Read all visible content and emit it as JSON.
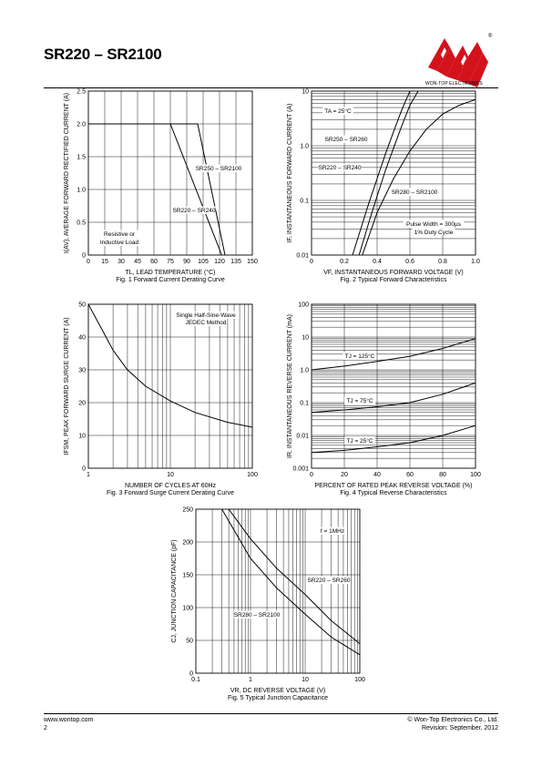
{
  "header": {
    "title": "SR220 – SR2100",
    "brand": "WON-TOP ELECTRONICS",
    "trademark": "®"
  },
  "footer": {
    "website": "www.wontop.com",
    "page_number": "2",
    "copyright": "© Won-Top Electronics Co., Ltd.",
    "revision": "Revision: September, 2012"
  },
  "chart_data": [
    {
      "id": "fig1",
      "type": "line",
      "caption": "Fig. 1 Forward Current Derating Curve",
      "xlabel": "TL, LEAD TEMPERATURE (°C)",
      "ylabel": "I(AV), AVERAGE FORWARD RECTIFIED CURRENT (A)",
      "xlim": [
        0,
        150
      ],
      "ylim": [
        0,
        2.5
      ],
      "xticks": [
        "0",
        "15",
        "30",
        "45",
        "60",
        "75",
        "90",
        "105",
        "120",
        "135",
        "150"
      ],
      "yticks": [
        "0",
        "0.5",
        "1.0",
        "1.5",
        "2.0",
        "2.5"
      ],
      "series": [
        {
          "name": "SR250 – SR2100",
          "x": [
            0,
            100,
            125
          ],
          "y": [
            2.0,
            2.0,
            0
          ]
        },
        {
          "name": "SR220 – SR240",
          "x": [
            0,
            75,
            122
          ],
          "y": [
            2.0,
            2.0,
            0
          ]
        }
      ],
      "annotations": [
        "Resistive or",
        "Inductive Load"
      ]
    },
    {
      "id": "fig2",
      "type": "line",
      "caption": "Fig. 2 Typical Forward Characteristics",
      "xlabel": "VF, INSTANTANEOUS FORWARD VOLTAGE (V)",
      "ylabel": "IF, INSTANTANEOUS FORWARD CURRENT (A)",
      "xlim": [
        0,
        1.0
      ],
      "ylim": [
        0.01,
        10
      ],
      "yscale": "log",
      "xticks": [
        "0",
        "0.2",
        "0.4",
        "0.6",
        "0.8",
        "1.0"
      ],
      "yticks": [
        "0.01",
        "0.1",
        "1.0",
        "10"
      ],
      "series": [
        {
          "name": "SR220 – SR240",
          "x": [
            0.25,
            0.3,
            0.35,
            0.4,
            0.45,
            0.5,
            0.55,
            0.6
          ],
          "y": [
            0.01,
            0.03,
            0.09,
            0.25,
            0.7,
            1.8,
            4.5,
            10
          ]
        },
        {
          "name": "SR250 – SR260",
          "x": [
            0.29,
            0.35,
            0.4,
            0.45,
            0.5,
            0.55,
            0.6,
            0.65
          ],
          "y": [
            0.01,
            0.04,
            0.12,
            0.35,
            0.9,
            2.3,
            5.5,
            10
          ]
        },
        {
          "name": "SR280 – SR2100",
          "x": [
            0.31,
            0.4,
            0.5,
            0.6,
            0.7,
            0.8,
            0.9,
            1.0
          ],
          "y": [
            0.01,
            0.06,
            0.25,
            0.8,
            2.0,
            3.8,
            5.5,
            7.0
          ]
        }
      ],
      "annotations": [
        "TA = 25°C",
        "Pulse Width = 300µs",
        "1% Duty Cycle"
      ]
    },
    {
      "id": "fig3",
      "type": "line",
      "caption": "Fig. 3 Forward Surge Current Derating Curve",
      "xlabel": "NUMBER OF CYCLES AT 60Hz",
      "ylabel": "IFSM, PEAK FORWARD SURGE CURRENT (A)",
      "xlim": [
        1,
        100
      ],
      "xscale": "log",
      "ylim": [
        0,
        50
      ],
      "xticks": [
        "1",
        "10",
        "100"
      ],
      "yticks": [
        "0",
        "10",
        "20",
        "30",
        "40",
        "50"
      ],
      "series": [
        {
          "name": "",
          "x": [
            1,
            2,
            3,
            5,
            10,
            20,
            50,
            100
          ],
          "y": [
            50,
            36,
            30,
            25,
            20.5,
            17,
            14,
            12.5
          ]
        }
      ],
      "annotations": [
        "Single Half-Sine-Wave",
        "JEDEC Method"
      ]
    },
    {
      "id": "fig4",
      "type": "line",
      "caption": "Fig. 4 Typical Reverse Characteristics",
      "xlabel": "PERCENT OF RATED PEAK REVERSE VOLTAGE (%)",
      "ylabel": "IR, INSTANTANEOUS REVERSE CURRENT (mA)",
      "xlim": [
        0,
        100
      ],
      "ylim": [
        0.001,
        100
      ],
      "yscale": "log",
      "xticks": [
        "0",
        "20",
        "40",
        "60",
        "80",
        "100"
      ],
      "yticks": [
        "0.001",
        "0.01",
        "0.1",
        "1.0",
        "10",
        "100"
      ],
      "series": [
        {
          "name": "TJ = 125°C",
          "x": [
            0,
            20,
            40,
            60,
            80,
            100
          ],
          "y": [
            1.0,
            1.3,
            1.8,
            2.6,
            4.5,
            9
          ]
        },
        {
          "name": "TJ = 75°C",
          "x": [
            0,
            20,
            40,
            60,
            80,
            100
          ],
          "y": [
            0.05,
            0.06,
            0.075,
            0.1,
            0.18,
            0.4
          ]
        },
        {
          "name": "TJ = 25°C",
          "x": [
            0,
            20,
            40,
            60,
            80,
            100
          ],
          "y": [
            0.003,
            0.0035,
            0.0045,
            0.006,
            0.01,
            0.02
          ]
        }
      ]
    },
    {
      "id": "fig5",
      "type": "line",
      "caption": "Fig. 5 Typical Junction Capacitance",
      "xlabel": "VR, DC REVERSE VOLTAGE (V)",
      "ylabel": "CJ, JUNCTION CAPACITANCE (pF)",
      "xlim": [
        0.1,
        100
      ],
      "xscale": "log",
      "ylim": [
        0,
        250
      ],
      "xticks": [
        "0.1",
        "1",
        "10",
        "100"
      ],
      "yticks": [
        "0",
        "50",
        "100",
        "150",
        "200",
        "250"
      ],
      "series": [
        {
          "name": "SR220 – SR260",
          "x": [
            0.4,
            1,
            3,
            10,
            30,
            100
          ],
          "y": [
            250,
            205,
            160,
            120,
            80,
            45
          ]
        },
        {
          "name": "SR280 – SR2100",
          "x": [
            0.3,
            1,
            3,
            10,
            30,
            100
          ],
          "y": [
            250,
            175,
            130,
            90,
            55,
            28
          ]
        }
      ],
      "annotations": [
        "f = 1MHz"
      ]
    }
  ]
}
